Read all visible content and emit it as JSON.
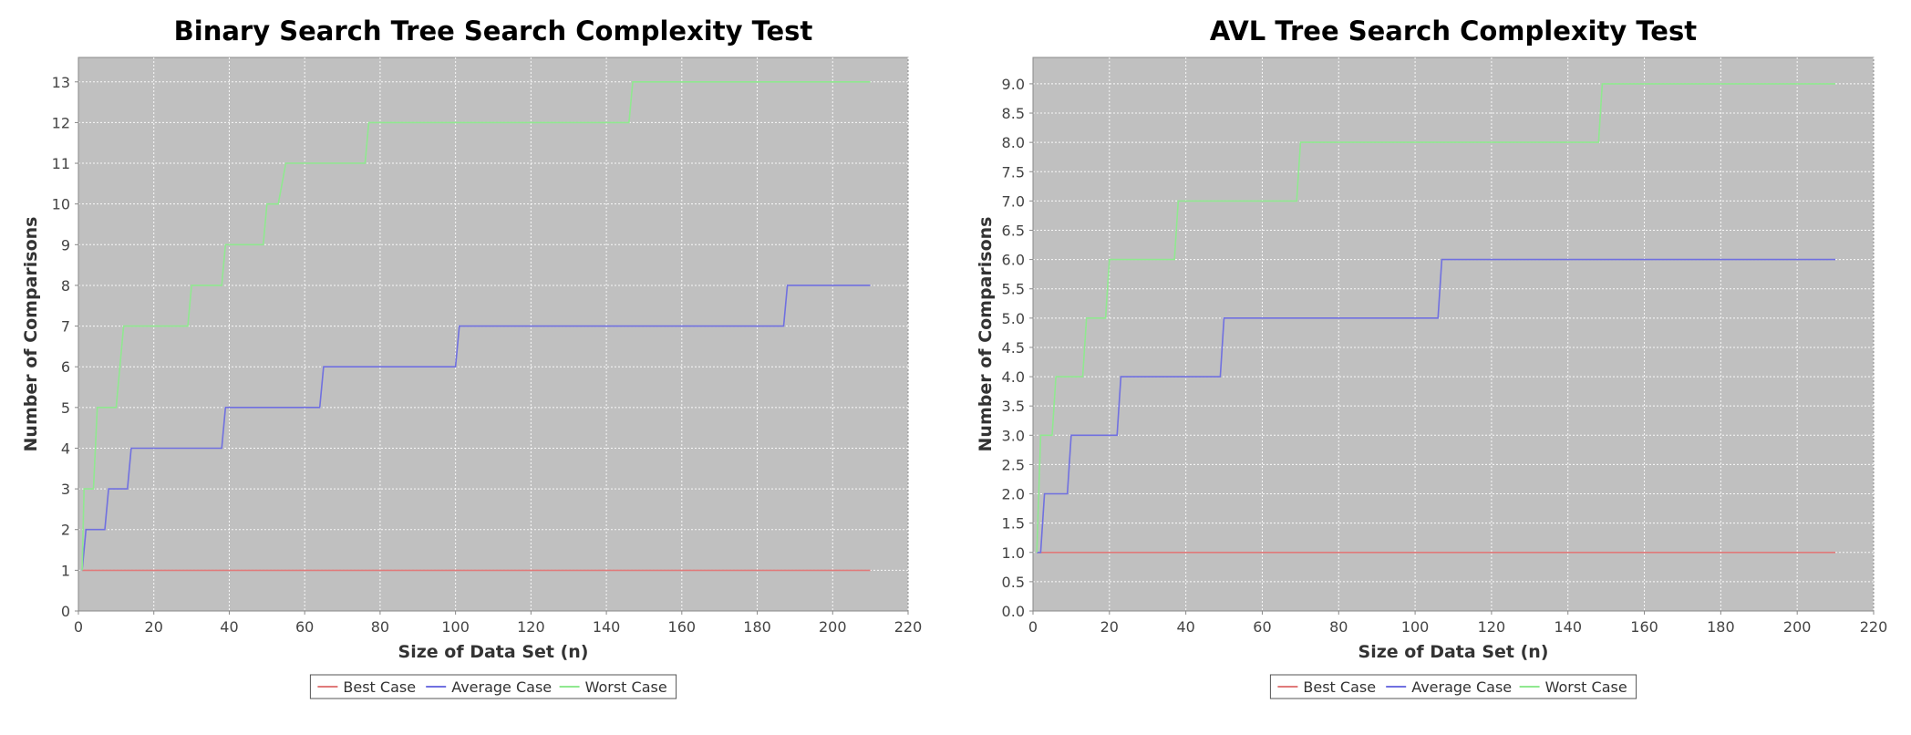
{
  "chart_data": [
    {
      "type": "line",
      "title": "Binary Search Tree Search Complexity Test",
      "xlabel": "Size of Data Set (n)",
      "ylabel": "Number of Comparisons",
      "xlim": [
        0,
        220
      ],
      "ylim": [
        0,
        13.6
      ],
      "xticks": [
        0,
        20,
        40,
        60,
        80,
        100,
        120,
        140,
        160,
        180,
        200,
        220
      ],
      "yticks": [
        0,
        1,
        2,
        3,
        4,
        5,
        6,
        7,
        8,
        9,
        10,
        11,
        12,
        13
      ],
      "ytick_decimals": 0,
      "grid": true,
      "plot_background": "#c0c0c0",
      "legend_position": "bottom-center",
      "series": [
        {
          "name": "Best Case",
          "color": "#e07a7a",
          "points": [
            [
              1,
              1
            ],
            [
              210,
              1
            ]
          ]
        },
        {
          "name": "Average Case",
          "color": "#7070e0",
          "points": [
            [
              1,
              1
            ],
            [
              2,
              2
            ],
            [
              7,
              2
            ],
            [
              8,
              3
            ],
            [
              13,
              3
            ],
            [
              14,
              4
            ],
            [
              38,
              4
            ],
            [
              39,
              5
            ],
            [
              64,
              5
            ],
            [
              65,
              6
            ],
            [
              100,
              6
            ],
            [
              101,
              7
            ],
            [
              187,
              7
            ],
            [
              188,
              8
            ],
            [
              210,
              8
            ]
          ]
        },
        {
          "name": "Worst Case",
          "color": "#90e890",
          "points": [
            [
              1,
              1
            ],
            [
              1.5,
              3
            ],
            [
              4,
              3
            ],
            [
              5,
              5
            ],
            [
              10,
              5
            ],
            [
              12,
              7
            ],
            [
              29,
              7
            ],
            [
              30,
              8
            ],
            [
              38,
              8
            ],
            [
              39,
              9
            ],
            [
              49,
              9
            ],
            [
              50,
              10
            ],
            [
              53,
              10
            ],
            [
              55,
              11
            ],
            [
              76,
              11
            ],
            [
              77,
              12
            ],
            [
              146,
              12
            ],
            [
              147,
              13
            ],
            [
              210,
              13
            ]
          ]
        }
      ]
    },
    {
      "type": "line",
      "title": "AVL Tree Search Complexity Test",
      "xlabel": "Size of Data Set (n)",
      "ylabel": "Number of Comparisons",
      "xlim": [
        0,
        220
      ],
      "ylim": [
        0,
        9.45
      ],
      "xticks": [
        0,
        20,
        40,
        60,
        80,
        100,
        120,
        140,
        160,
        180,
        200,
        220
      ],
      "yticks": [
        0,
        0.5,
        1,
        1.5,
        2,
        2.5,
        3,
        3.5,
        4,
        4.5,
        5,
        5.5,
        6,
        6.5,
        7,
        7.5,
        8,
        8.5,
        9
      ],
      "ytick_decimals": 1,
      "grid": true,
      "plot_background": "#c0c0c0",
      "legend_position": "bottom-center",
      "series": [
        {
          "name": "Best Case",
          "color": "#e07a7a",
          "points": [
            [
              1,
              1
            ],
            [
              210,
              1
            ]
          ]
        },
        {
          "name": "Average Case",
          "color": "#7070e0",
          "points": [
            [
              1,
              1
            ],
            [
              2,
              1
            ],
            [
              3,
              2
            ],
            [
              9,
              2
            ],
            [
              10,
              3
            ],
            [
              22,
              3
            ],
            [
              23,
              4
            ],
            [
              49,
              4
            ],
            [
              50,
              5
            ],
            [
              106,
              5
            ],
            [
              107,
              6
            ],
            [
              210,
              6
            ]
          ]
        },
        {
          "name": "Worst Case",
          "color": "#90e890",
          "points": [
            [
              1,
              1
            ],
            [
              2,
              3
            ],
            [
              5,
              3
            ],
            [
              6,
              4
            ],
            [
              13,
              4
            ],
            [
              14,
              5
            ],
            [
              19,
              5
            ],
            [
              20,
              6
            ],
            [
              37,
              6
            ],
            [
              38,
              7
            ],
            [
              69,
              7
            ],
            [
              70,
              8
            ],
            [
              148,
              8
            ],
            [
              149,
              9
            ],
            [
              210,
              9
            ]
          ]
        }
      ]
    }
  ]
}
